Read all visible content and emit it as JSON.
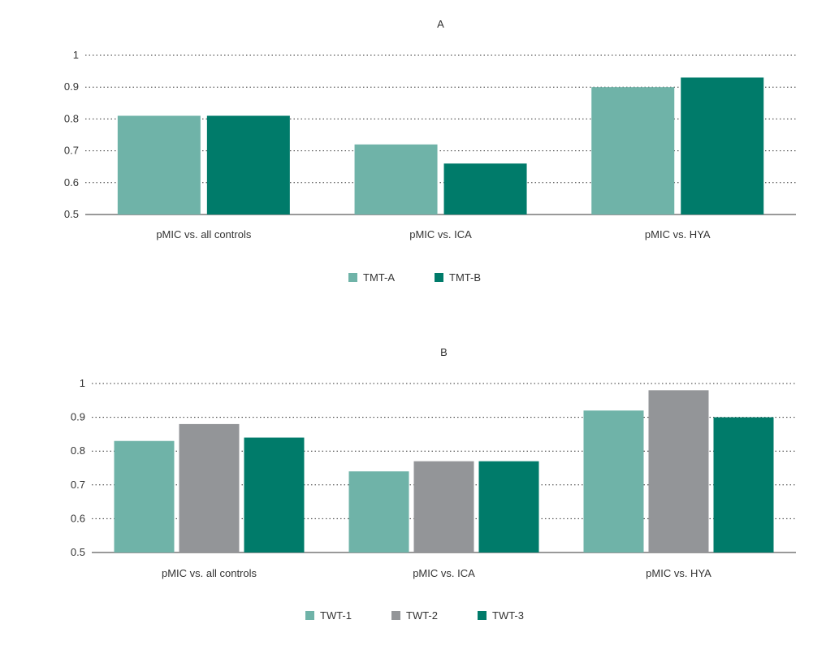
{
  "chart_data": [
    {
      "type": "bar",
      "title": "A",
      "categories": [
        "pMIC vs. all controls",
        "pMIC vs. ICA",
        "pMIC vs. HYA"
      ],
      "series": [
        {
          "name": "TMT-A",
          "color": "#6fb3a8",
          "values": [
            0.81,
            0.72,
            0.9
          ]
        },
        {
          "name": "TMT-B",
          "color": "#007b6a",
          "values": [
            0.81,
            0.66,
            0.93
          ]
        }
      ],
      "ylim": [
        0.5,
        1
      ],
      "yticks": [
        "0.5",
        "0.6",
        "0.7",
        "0.8",
        "0.9",
        "1"
      ],
      "grid": true,
      "legend": "bottom"
    },
    {
      "type": "bar",
      "title": "B",
      "categories": [
        "pMIC vs. all controls",
        "pMIC vs. ICA",
        "pMIC vs. HYA"
      ],
      "series": [
        {
          "name": "TWT-1",
          "color": "#6fb3a8",
          "values": [
            0.83,
            0.74,
            0.92
          ]
        },
        {
          "name": "TWT-2",
          "color": "#939598",
          "values": [
            0.88,
            0.77,
            0.98
          ]
        },
        {
          "name": "TWT-3",
          "color": "#007b6a",
          "values": [
            0.84,
            0.77,
            0.9
          ]
        }
      ],
      "ylim": [
        0.5,
        1
      ],
      "yticks": [
        "0.5",
        "0.6",
        "0.7",
        "0.8",
        "0.9",
        "1"
      ],
      "grid": true,
      "legend": "bottom"
    }
  ]
}
